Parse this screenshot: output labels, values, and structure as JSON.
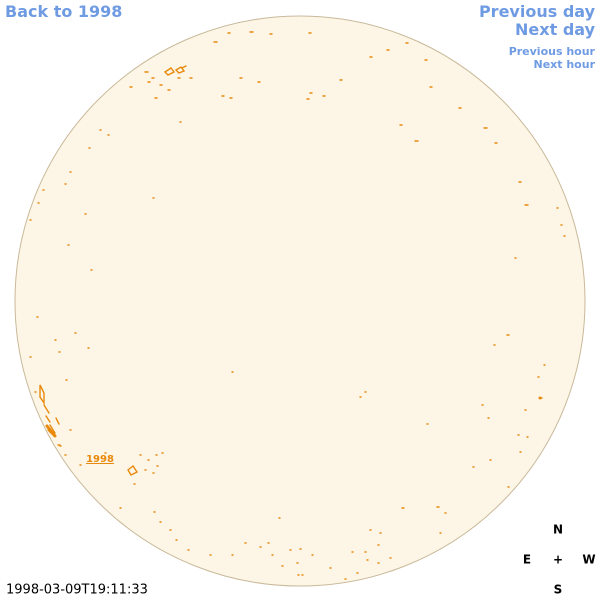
{
  "nav": {
    "back": "Back to 1998",
    "previous_day": "Previous day",
    "next_day": "Next day",
    "previous_hour": "Previous hour",
    "next_hour": "Next hour"
  },
  "region_label": "1998",
  "timestamp": "1998-03-09T19:11:33",
  "compass": {
    "north": "N",
    "east": "E",
    "center": "+",
    "west": "W",
    "south": "S"
  }
}
